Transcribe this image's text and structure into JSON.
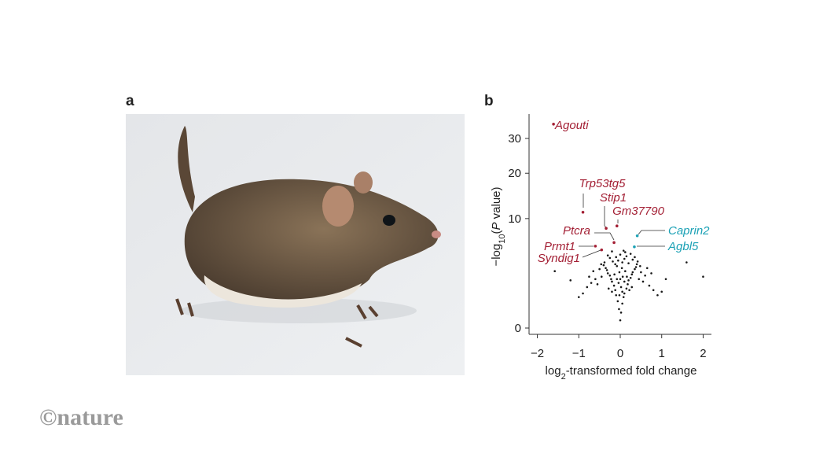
{
  "panel_labels": [
    "a",
    "b"
  ],
  "watermark": "©nature",
  "chart_data": {
    "type": "scatter",
    "yscale": "sqrt",
    "xlabel_parts": [
      "log",
      "2",
      "-transformed fold change"
    ],
    "ylabel_parts": [
      "−log",
      "10",
      "(",
      "P",
      " value)"
    ],
    "xlim": [
      -2.2,
      2.2
    ],
    "ylim": [
      0,
      36
    ],
    "xticks": [
      {
        "value": -2,
        "label": "−2"
      },
      {
        "value": -1,
        "label": "−1"
      },
      0,
      1,
      2
    ],
    "yticks": [
      0,
      10,
      20,
      30
    ],
    "series": [
      {
        "color": "#1a1a1a",
        "x": [
          0,
          0.02,
          -0.03,
          0.05,
          -0.06,
          0.08,
          -0.1,
          0.1,
          -0.12,
          0.15,
          -0.15,
          0.18,
          -0.2,
          0.2,
          -0.22,
          0.25,
          -0.25,
          0.28,
          -0.3,
          0.3,
          -0.32,
          0.35,
          -0.35,
          0.38,
          -0.4,
          0.4,
          0.05,
          -0.05,
          0.1,
          -0.1,
          0,
          0.12,
          -0.08,
          0.2,
          -0.18,
          0.15,
          -0.25,
          0.3,
          0.06,
          -0.04,
          0.12,
          -0.14,
          0.22,
          -0.2,
          0.02,
          0.45,
          -0.45,
          0.5,
          -0.5,
          0.55,
          -0.55,
          0.6,
          -0.6,
          0.7,
          -0.7,
          0.8,
          -0.8,
          0.9,
          -0.9,
          1.0,
          -1.0,
          0.42,
          -0.38,
          0.25,
          -0.3,
          0.08,
          -0.2,
          0.35,
          1.6,
          2.0,
          -1.58,
          1.1,
          -1.2,
          0.65,
          -0.65,
          0,
          0.04,
          -0.02,
          0.1,
          -0.08,
          0.16,
          -0.12,
          0.28,
          -0.28,
          0.48,
          -0.46,
          0.75,
          -0.75,
          0.05,
          -0.02
        ],
        "values": [
          0.05,
          0.2,
          0.3,
          0.5,
          0.6,
          0.8,
          0.9,
          1.0,
          1.2,
          1.3,
          1.5,
          1.6,
          1.8,
          1.9,
          2.0,
          2.1,
          2.3,
          2.4,
          2.5,
          2.6,
          2.8,
          2.9,
          3.0,
          3.1,
          3.3,
          3.4,
          3.6,
          3.8,
          4.0,
          4.2,
          4.5,
          4.8,
          3.2,
          3.5,
          3.7,
          4.3,
          4.1,
          3.9,
          2.2,
          1.7,
          2.7,
          2.4,
          1.2,
          1.1,
          1.4,
          2.0,
          2.2,
          2.6,
          2.9,
          1.8,
          1.6,
          2.3,
          2.0,
          1.5,
          1.7,
          1.2,
          1.4,
          0.9,
          1.0,
          1.1,
          0.8,
          3.7,
          3.6,
          4.6,
          4.4,
          5.0,
          4.9,
          4.2,
          3.6,
          2.2,
          2.7,
          2.0,
          1.9,
          3.0,
          2.7,
          2.0,
          3.0,
          2.6,
          1.8,
          2.0,
          2.2,
          3.4,
          1.4,
          1.3,
          3.2,
          3.4,
          2.5,
          2.2,
          1.1,
          0.9
        ]
      }
    ],
    "annotations": [
      {
        "label": "Agouti",
        "x": -1.61,
        "y": 34.7,
        "color": "#a31f34"
      },
      {
        "label": "Trp53tg5",
        "x": -0.9,
        "y": 11.2,
        "color": "#a31f34"
      },
      {
        "label": "Stip1",
        "x": -0.34,
        "y": 8.3,
        "color": "#a31f34"
      },
      {
        "label": "Gm37790",
        "x": -0.08,
        "y": 8.7,
        "color": "#a31f34"
      },
      {
        "label": "Ptcra",
        "x": -0.15,
        "y": 6.1,
        "color": "#a31f34"
      },
      {
        "label": "Prmt1",
        "x": -0.6,
        "y": 5.6,
        "color": "#a31f34"
      },
      {
        "label": "Syndig1",
        "x": -0.45,
        "y": 5.1,
        "color": "#a31f34"
      },
      {
        "label": "Caprin2",
        "x": 0.41,
        "y": 7.1,
        "color": "#1ba1b5"
      },
      {
        "label": "Agbl5",
        "x": 0.34,
        "y": 5.5,
        "color": "#1ba1b5"
      }
    ]
  }
}
